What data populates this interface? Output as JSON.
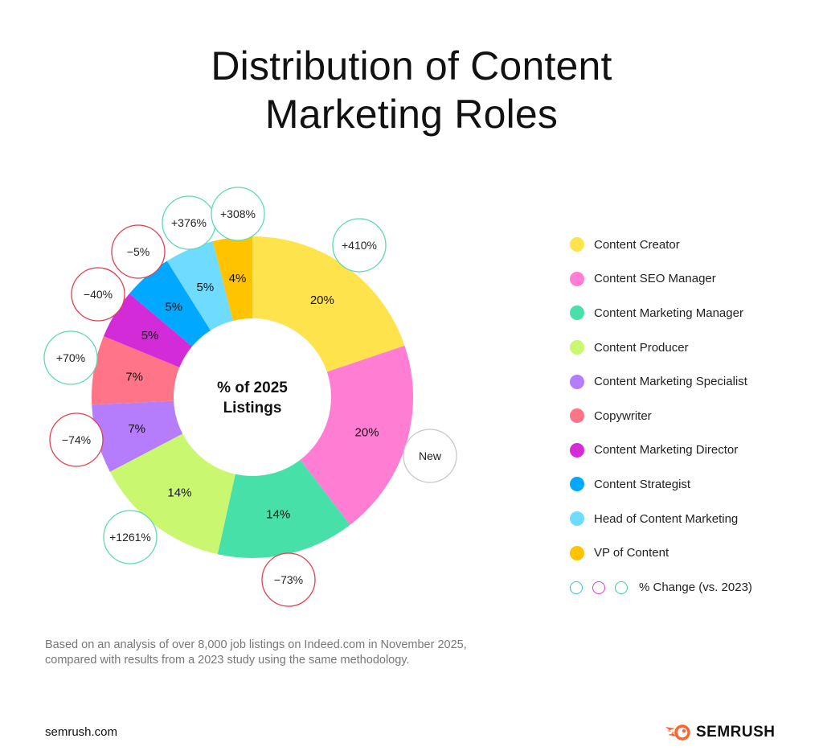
{
  "title_line1": "Distribution of Content",
  "title_line2": "Marketing Roles",
  "center_label_line1": "% of 2025",
  "center_label_line2": "Listings",
  "change_legend_label": "% Change (vs. 2023)",
  "change_legend_colors": [
    "#3fb6e8",
    "#d63fd6",
    "#3fcf9f"
  ],
  "footnote_line1": "Based on an analysis of over 8,000 job listings on Indeed.com in November 2025,",
  "footnote_line2": "compared with results from a 2023 study using the same methodology.",
  "site": "semrush.com",
  "brand": "SEMRUSH",
  "brand_color": "#ff642d",
  "colors": {
    "positive_ring": "#5fd8b6",
    "negative_ring": "#e0404f",
    "neutral_ring": "#c8c8c8"
  },
  "chart_data": {
    "type": "pie",
    "subtype": "donut",
    "title": "Distribution of Content Marketing Roles",
    "center_label": "% of 2025 Listings",
    "categories": [
      "Content Creator",
      "Content SEO Manager",
      "Content Marketing Manager",
      "Content Producer",
      "Content Marketing Specialist",
      "Copywriter",
      "Content Marketing Director",
      "Content Strategist",
      "Head of Content Marketing",
      "VP of Content"
    ],
    "values": [
      20,
      20,
      14,
      14,
      7,
      7,
      5,
      5,
      5,
      4
    ],
    "value_labels": [
      "20%",
      "20%",
      "14%",
      "14%",
      "7%",
      "7%",
      "5%",
      "5%",
      "5%",
      "4%"
    ],
    "change_vs_2023": [
      "+410%",
      "New",
      "-73%",
      "+1261%",
      "-74%",
      "+70%",
      "-40%",
      "-5%",
      "+376%",
      "+308%"
    ],
    "change_type": [
      "positive",
      "new",
      "negative",
      "positive",
      "negative",
      "positive",
      "negative",
      "negative",
      "positive",
      "positive"
    ],
    "colors": [
      "#ffe34d",
      "#ff7ed4",
      "#47e0a8",
      "#c9f76f",
      "#b57cfc",
      "#ff7487",
      "#d42bd8",
      "#00a9ff",
      "#6fdcff",
      "#ffc300"
    ],
    "legend_position": "right",
    "legend_extra": "% Change (vs. 2023)",
    "note": "Based on an analysis of over 8,000 job listings on Indeed.com in November 2025, compared with results from a 2023 study using the same methodology."
  }
}
